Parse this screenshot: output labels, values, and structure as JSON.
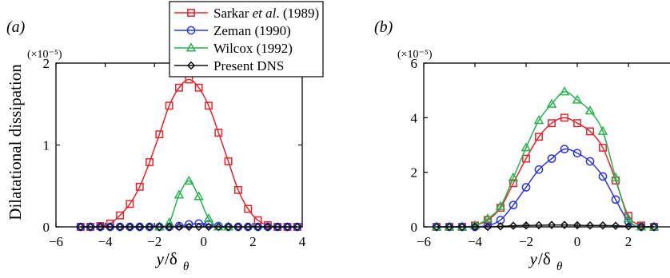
{
  "chart_data": [
    {
      "type": "line",
      "panel_label": "(a)",
      "scale_label": "(×10⁻⁵)",
      "xlabel": "y/δθ",
      "ylabel": "Dilatational dissipation",
      "xlim": [
        -6,
        4
      ],
      "ylim": [
        0,
        2
      ],
      "xticks": [
        -6,
        -4,
        -2,
        0,
        2,
        4
      ],
      "yticks": [
        0,
        1,
        2
      ],
      "grid": false,
      "series": [
        {
          "name": "Sarkar et al. (1989)",
          "color": "#e8232a",
          "marker": "square",
          "x": [
            -5.0,
            -4.6,
            -4.2,
            -3.8,
            -3.4,
            -3.0,
            -2.6,
            -2.2,
            -1.8,
            -1.4,
            -1.0,
            -0.6,
            -0.2,
            0.2,
            0.6,
            1.0,
            1.4,
            1.8,
            2.2,
            2.6,
            3.0,
            3.4,
            3.8
          ],
          "y": [
            0.0,
            0.0,
            0.01,
            0.04,
            0.14,
            0.28,
            0.49,
            0.79,
            1.13,
            1.48,
            1.7,
            1.8,
            1.7,
            1.48,
            1.15,
            0.8,
            0.45,
            0.22,
            0.08,
            0.02,
            0.0,
            0.0,
            0.0
          ]
        },
        {
          "name": "Zeman (1990)",
          "color": "#2b35e6",
          "marker": "circle",
          "x": [
            -5.0,
            -4.6,
            -4.2,
            -3.8,
            -3.4,
            -3.0,
            -2.6,
            -2.2,
            -1.8,
            -1.4,
            -1.0,
            -0.6,
            -0.2,
            0.2,
            0.6,
            1.0,
            1.4,
            1.8,
            2.2,
            2.6,
            3.0,
            3.4,
            3.8
          ],
          "y": [
            0.0,
            0.0,
            0.0,
            0.0,
            0.0,
            0.0,
            0.0,
            0.0,
            0.0,
            0.0,
            0.01,
            0.03,
            0.04,
            0.03,
            0.01,
            0.0,
            0.0,
            0.0,
            0.0,
            0.0,
            0.0,
            0.0,
            0.0
          ]
        },
        {
          "name": "Wilcox (1992)",
          "color": "#27b34c",
          "marker": "triangle",
          "x": [
            -1.8,
            -1.4,
            -1.0,
            -0.6,
            -0.2,
            0.2,
            0.6,
            1.0
          ],
          "y": [
            0.0,
            0.05,
            0.39,
            0.56,
            0.37,
            0.1,
            0.0,
            0.0
          ]
        },
        {
          "name": "Present DNS",
          "color": "#111111",
          "marker": "diamond",
          "x": [
            -5.0,
            -4.6,
            -4.2,
            -3.8,
            -3.4,
            -3.0,
            -2.6,
            -2.2,
            -1.8,
            -1.4,
            -1.0,
            -0.6,
            -0.2,
            0.2,
            0.6,
            1.0,
            1.4,
            1.8,
            2.2,
            2.6,
            3.0,
            3.4,
            3.8
          ],
          "y": [
            0.0,
            0.0,
            0.0,
            0.0,
            0.0,
            0.0,
            0.0,
            0.0,
            0.0,
            0.0,
            0.0,
            0.0,
            0.0,
            0.0,
            0.0,
            0.0,
            0.0,
            0.0,
            0.0,
            0.0,
            0.0,
            0.0,
            0.0
          ]
        }
      ]
    },
    {
      "type": "line",
      "panel_label": "(b)",
      "scale_label": "(×10⁻⁵)",
      "xlabel": "y/δθ",
      "ylabel": "",
      "xlim": [
        -6,
        4
      ],
      "ylim": [
        0,
        6
      ],
      "xticks": [
        -6,
        -4,
        -2,
        0,
        2,
        4
      ],
      "yticks": [
        0,
        2,
        4,
        6
      ],
      "grid": false,
      "series": [
        {
          "name": "Sarkar et al. (1989)",
          "color": "#e8232a",
          "marker": "square",
          "x": [
            -5.5,
            -5.0,
            -4.5,
            -4.0,
            -3.5,
            -3.0,
            -2.5,
            -2.0,
            -1.5,
            -1.0,
            -0.5,
            0.0,
            0.5,
            1.0,
            1.5,
            2.0,
            2.5,
            3.0
          ],
          "y": [
            0.0,
            0.0,
            0.0,
            0.05,
            0.25,
            0.7,
            1.6,
            2.5,
            3.3,
            3.8,
            4.0,
            3.8,
            3.5,
            2.9,
            1.7,
            0.4,
            0.05,
            0.0
          ]
        },
        {
          "name": "Zeman (1990)",
          "color": "#2b35e6",
          "marker": "circle",
          "x": [
            -5.5,
            -5.0,
            -4.5,
            -4.0,
            -3.5,
            -3.0,
            -2.5,
            -2.0,
            -1.5,
            -1.0,
            -0.5,
            0.0,
            0.5,
            1.0,
            1.5,
            2.0,
            2.5,
            3.0
          ],
          "y": [
            0.0,
            0.0,
            0.0,
            0.0,
            0.05,
            0.25,
            0.8,
            1.45,
            2.1,
            2.5,
            2.85,
            2.7,
            2.4,
            1.85,
            1.0,
            0.2,
            0.0,
            0.0
          ]
        },
        {
          "name": "Wilcox (1992)",
          "color": "#27b34c",
          "marker": "triangle",
          "x": [
            -5.5,
            -5.0,
            -4.5,
            -4.0,
            -3.5,
            -3.0,
            -2.5,
            -2.0,
            -1.5,
            -1.0,
            -0.5,
            0.0,
            0.5,
            1.0,
            1.5,
            2.0,
            2.5,
            3.0
          ],
          "y": [
            0.0,
            0.0,
            0.0,
            0.05,
            0.3,
            0.75,
            1.8,
            2.9,
            3.9,
            4.5,
            4.95,
            4.65,
            4.25,
            3.5,
            1.8,
            0.3,
            0.0,
            0.0
          ]
        },
        {
          "name": "Present DNS",
          "color": "#111111",
          "marker": "diamond",
          "x": [
            -5.5,
            -5.0,
            -4.5,
            -4.0,
            -3.5,
            -3.0,
            -2.5,
            -2.0,
            -1.5,
            -1.0,
            -0.5,
            0.0,
            0.5,
            1.0,
            1.5,
            2.0,
            2.5,
            3.0
          ],
          "y": [
            0.0,
            0.0,
            0.0,
            0.0,
            0.0,
            0.02,
            0.04,
            0.05,
            0.06,
            0.07,
            0.07,
            0.06,
            0.05,
            0.05,
            0.04,
            0.02,
            0.0,
            0.0
          ]
        }
      ]
    }
  ],
  "legend": {
    "placement": "top-center",
    "items": [
      {
        "prefix": "Sarkar ",
        "italic": "et al",
        "suffix": ". (1989)",
        "color": "#e8232a",
        "marker": "square"
      },
      {
        "text": "Zeman (1990)",
        "color": "#2b35e6",
        "marker": "circle"
      },
      {
        "text": "Wilcox (1992)",
        "color": "#27b34c",
        "marker": "triangle"
      },
      {
        "text": "Present DNS",
        "color": "#111111",
        "marker": "diamond"
      }
    ]
  }
}
